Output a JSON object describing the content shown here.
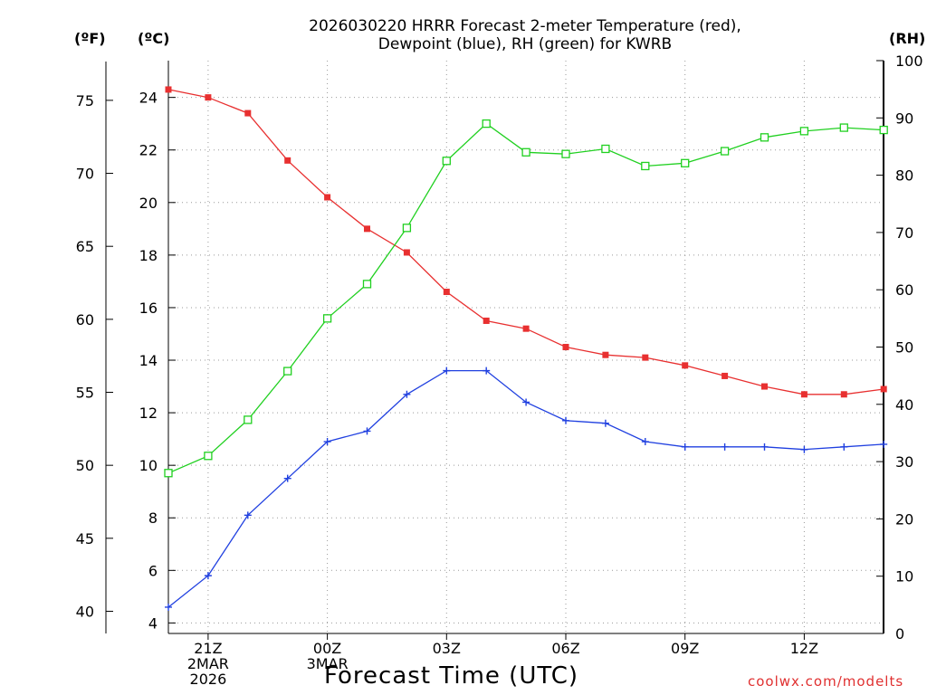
{
  "chart_data": {
    "type": "line",
    "title_lines": [
      "2026030220 HRRR Forecast 2-meter Temperature (red),",
      "Dewpoint (blue), RH (green) for KWRB"
    ],
    "xlabel": "Forecast Time (UTC)",
    "units": {
      "fahrenheit": "(ºF)",
      "celsius": "(ºC)",
      "rh": "(RH)"
    },
    "x_hours": [
      0,
      1,
      2,
      3,
      4,
      5,
      6,
      7,
      8,
      9,
      10,
      11,
      12,
      13,
      14,
      15,
      16,
      17,
      18
    ],
    "x_tick_hours": [
      1,
      4,
      7,
      10,
      13,
      16
    ],
    "x_tick_labels": [
      [
        "21Z",
        "2MAR",
        "2026"
      ],
      [
        "00Z",
        "3MAR"
      ],
      [
        "03Z"
      ],
      [
        "06Z"
      ],
      [
        "09Z"
      ],
      [
        "12Z"
      ]
    ],
    "celsius_axis": {
      "ylim": [
        3.6,
        25.4
      ],
      "ticks": [
        4,
        6,
        8,
        10,
        12,
        14,
        16,
        18,
        20,
        22,
        24
      ]
    },
    "fahrenheit_axis": {
      "ticks": [
        40,
        45,
        50,
        55,
        60,
        65,
        70,
        75
      ]
    },
    "rh_axis": {
      "ylim": [
        0,
        100
      ],
      "ticks": [
        0,
        10,
        20,
        30,
        40,
        50,
        60,
        70,
        80,
        90,
        100
      ]
    },
    "grid": true,
    "series": [
      {
        "name": "Temperature",
        "color": "#e83030",
        "axis": "celsius",
        "marker": "filled-square",
        "values": [
          24.3,
          24.0,
          23.4,
          21.6,
          20.2,
          19.0,
          18.1,
          16.6,
          15.5,
          15.2,
          14.5,
          14.2,
          14.1,
          13.8,
          13.4,
          13.0,
          12.7,
          12.7,
          12.9
        ]
      },
      {
        "name": "Dewpoint",
        "color": "#2040e0",
        "axis": "celsius",
        "marker": "plus",
        "values": [
          4.6,
          5.8,
          8.1,
          9.5,
          10.9,
          11.3,
          12.7,
          13.6,
          13.6,
          12.4,
          11.7,
          11.6,
          10.9,
          10.7,
          10.7,
          10.7,
          10.6,
          10.7,
          10.8
        ]
      },
      {
        "name": "RH",
        "color": "#20d020",
        "axis": "rh",
        "marker": "open-square",
        "values": [
          28,
          31,
          37.3,
          45.8,
          55,
          61,
          70.8,
          82.5,
          89,
          84,
          83.7,
          84.6,
          81.6,
          82.1,
          84.2,
          86.6,
          87.7,
          88.3,
          87.9
        ]
      }
    ],
    "credit": "coolwx.com/modelts"
  }
}
